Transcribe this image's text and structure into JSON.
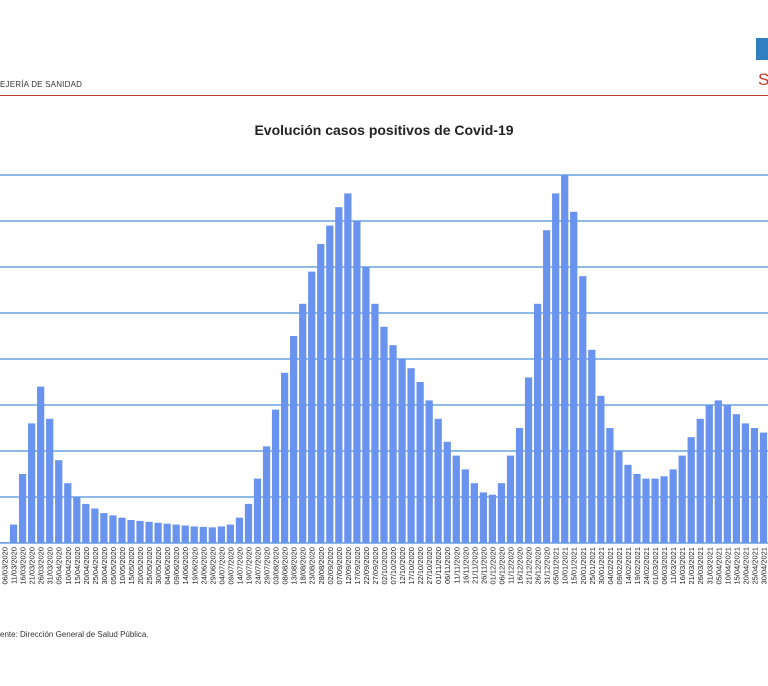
{
  "header": {
    "org": "EJERÍA DE SANIDAD",
    "logo_letter": "S"
  },
  "source": "ente: Dirección General de Salud Pública.",
  "colors": {
    "bar": "#6a93f0",
    "grid": "#4a90d9",
    "rule": "#c0392b"
  },
  "chart_data": {
    "type": "bar",
    "title": "Evolución casos positivos de Covid-19",
    "xlabel": "",
    "ylabel": "",
    "grid": true,
    "legend": "none",
    "dates": [
      "06/03/2020",
      "11/03/2020",
      "16/03/2020",
      "21/03/2020",
      "26/03/2020",
      "31/03/2020",
      "05/04/2020",
      "10/04/2020",
      "15/04/2020",
      "20/04/2020",
      "25/04/2020",
      "30/04/2020",
      "05/05/2020",
      "10/05/2020",
      "15/05/2020",
      "20/05/2020",
      "25/05/2020",
      "30/05/2020",
      "04/06/2020",
      "09/06/2020",
      "14/06/2020",
      "19/06/2020",
      "24/06/2020",
      "29/06/2020",
      "04/07/2020",
      "09/07/2020",
      "14/07/2020",
      "19/07/2020",
      "24/07/2020",
      "29/07/2020",
      "03/08/2020",
      "08/08/2020",
      "13/08/2020",
      "18/08/2020",
      "23/08/2020",
      "28/08/2020",
      "02/09/2020",
      "07/09/2020",
      "12/09/2020",
      "17/09/2020",
      "22/09/2020",
      "27/09/2020",
      "02/10/2020",
      "07/10/2020",
      "12/10/2020",
      "17/10/2020",
      "22/10/2020",
      "27/10/2020",
      "01/11/2020",
      "06/11/2020",
      "11/11/2020",
      "16/11/2020",
      "21/11/2020",
      "26/11/2020",
      "01/12/2020",
      "06/12/2020",
      "11/12/2020",
      "16/12/2020",
      "21/12/2020",
      "26/12/2020",
      "31/12/2020",
      "05/01/2021",
      "10/01/2021",
      "15/01/2021",
      "20/01/2021",
      "25/01/2021",
      "30/01/2021",
      "04/02/2021",
      "09/02/2021",
      "14/02/2021",
      "19/02/2021",
      "24/02/2021",
      "01/03/2021",
      "06/03/2021",
      "11/03/2021",
      "16/03/2021",
      "21/03/2021",
      "26/03/2021",
      "31/03/2021",
      "05/04/2021",
      "10/04/2021",
      "15/04/2021",
      "20/04/2021",
      "25/04/2021",
      "30/04/2021"
    ],
    "values": [
      2,
      40,
      150,
      260,
      340,
      270,
      180,
      130,
      100,
      85,
      75,
      65,
      60,
      55,
      50,
      48,
      46,
      44,
      42,
      40,
      38,
      36,
      35,
      34,
      36,
      40,
      55,
      85,
      140,
      210,
      290,
      370,
      450,
      520,
      590,
      650,
      690,
      730,
      760,
      700,
      600,
      520,
      470,
      430,
      400,
      380,
      350,
      310,
      270,
      220,
      190,
      160,
      130,
      110,
      105,
      130,
      190,
      250,
      360,
      520,
      680,
      760,
      800,
      720,
      580,
      420,
      320,
      250,
      200,
      170,
      150,
      140,
      140,
      145,
      160,
      190,
      230,
      270,
      300,
      310,
      300,
      280,
      260,
      250,
      240
    ],
    "ylim": [
      0,
      800
    ]
  }
}
